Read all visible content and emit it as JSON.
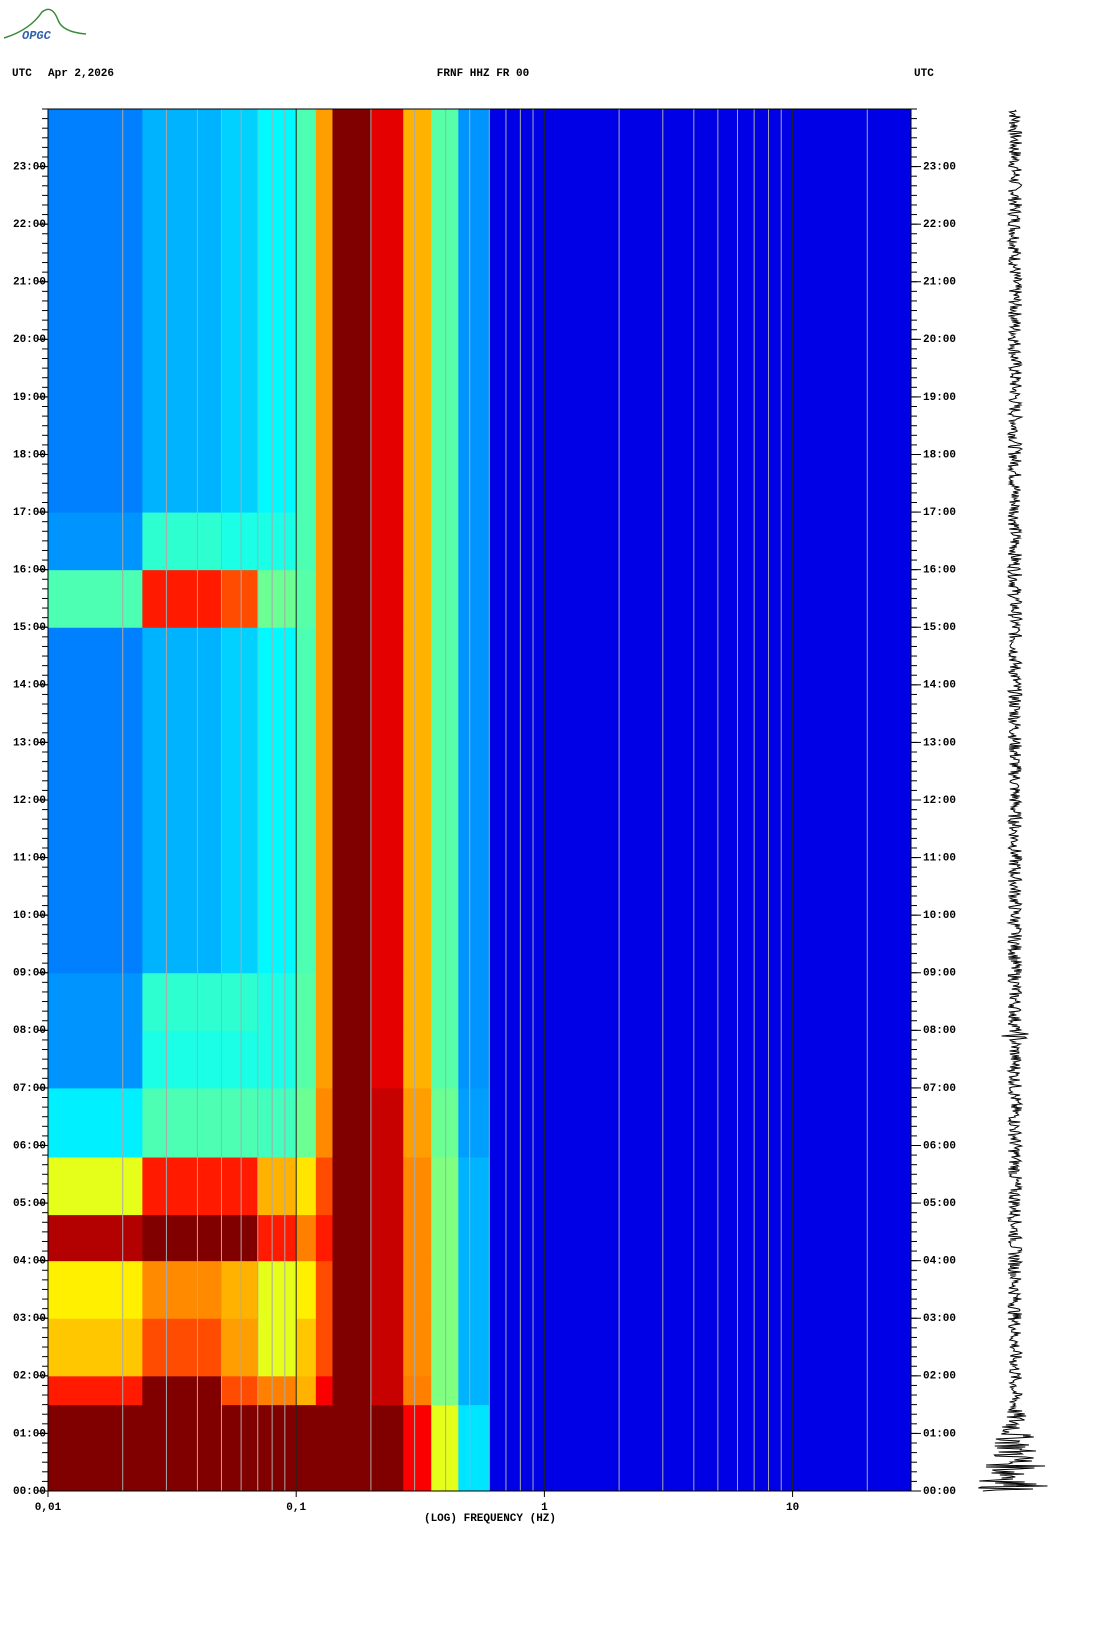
{
  "logo": "OPGC",
  "chart_data": {
    "type": "spectrogram",
    "header_left": "UTC",
    "date": "Apr 2,2026",
    "title": "FRNF HHZ FR 00",
    "header_right": "UTC",
    "xlabel": "(LOG) FREQUENCY (HZ)",
    "xscale": "log",
    "xlim": [
      0.01,
      30
    ],
    "xticks": [
      {
        "value": 0.01,
        "label": "0,01"
      },
      {
        "value": 0.1,
        "label": "0,1"
      },
      1,
      10
    ],
    "ylim": [
      0,
      24
    ],
    "yticks": [
      {
        "value": 0,
        "label": "00:00"
      },
      {
        "value": 1,
        "label": "01:00"
      },
      {
        "value": 2,
        "label": "02:00"
      },
      {
        "value": 3,
        "label": "03:00"
      },
      {
        "value": 4,
        "label": "04:00"
      },
      {
        "value": 5,
        "label": "05:00"
      },
      {
        "value": 6,
        "label": "06:00"
      },
      {
        "value": 7,
        "label": "07:00"
      },
      {
        "value": 8,
        "label": "08:00"
      },
      {
        "value": 9,
        "label": "09:00"
      },
      {
        "value": 10,
        "label": "10:00"
      },
      {
        "value": 11,
        "label": "11:00"
      },
      {
        "value": 12,
        "label": "12:00"
      },
      {
        "value": 13,
        "label": "13:00"
      },
      {
        "value": 14,
        "label": "14:00"
      },
      {
        "value": 15,
        "label": "15:00"
      },
      {
        "value": 16,
        "label": "16:00"
      },
      {
        "value": 17,
        "label": "17:00"
      },
      {
        "value": 18,
        "label": "18:00"
      },
      {
        "value": 19,
        "label": "19:00"
      },
      {
        "value": 20,
        "label": "20:00"
      },
      {
        "value": 21,
        "label": "21:00"
      },
      {
        "value": 22,
        "label": "22:00"
      },
      {
        "value": 23,
        "label": "23:00"
      }
    ],
    "x_bins": [
      0.01,
      0.024,
      0.05,
      0.07,
      0.1,
      0.12,
      0.14,
      0.2,
      0.27,
      0.35,
      0.45,
      0.6,
      30
    ],
    "y_bins": [
      0,
      1.5,
      2,
      3,
      4,
      4.8,
      5.8,
      7,
      8,
      9,
      15,
      16,
      17,
      24
    ],
    "values": [
      [
        1,
        1,
        1,
        1,
        1,
        1,
        1,
        1,
        0.88,
        0.6,
        0.35,
        0.1
      ],
      [
        0.85,
        1,
        0.8,
        0.75,
        0.7,
        0.88,
        1,
        0.93,
        0.75,
        0.5,
        0.3,
        0.1
      ],
      [
        0.68,
        0.8,
        0.72,
        0.6,
        0.68,
        0.8,
        1,
        0.93,
        0.74,
        0.5,
        0.3,
        0.1
      ],
      [
        0.64,
        0.74,
        0.7,
        0.6,
        0.64,
        0.8,
        1,
        0.93,
        0.74,
        0.5,
        0.3,
        0.1
      ],
      [
        0.95,
        1,
        1,
        0.85,
        0.75,
        0.85,
        1,
        0.93,
        0.74,
        0.5,
        0.3,
        0.1
      ],
      [
        0.6,
        0.85,
        0.85,
        0.7,
        0.65,
        0.8,
        1,
        0.93,
        0.74,
        0.5,
        0.3,
        0.1
      ],
      [
        0.36,
        0.45,
        0.45,
        0.44,
        0.48,
        0.74,
        1,
        0.93,
        0.72,
        0.48,
        0.28,
        0.1
      ],
      [
        0.27,
        0.4,
        0.4,
        0.4,
        0.46,
        0.72,
        1,
        0.9,
        0.7,
        0.46,
        0.27,
        0.1
      ],
      [
        0.27,
        0.42,
        0.42,
        0.4,
        0.46,
        0.72,
        1,
        0.9,
        0.7,
        0.46,
        0.27,
        0.1
      ],
      [
        0.25,
        0.3,
        0.33,
        0.37,
        0.45,
        0.72,
        1,
        0.9,
        0.7,
        0.46,
        0.27,
        0.1
      ],
      [
        0.45,
        0.85,
        0.8,
        0.48,
        0.46,
        0.72,
        1,
        0.9,
        0.7,
        0.46,
        0.27,
        0.1
      ],
      [
        0.27,
        0.42,
        0.4,
        0.4,
        0.45,
        0.72,
        1,
        0.9,
        0.7,
        0.46,
        0.27,
        0.1
      ],
      [
        0.25,
        0.3,
        0.33,
        0.37,
        0.45,
        0.72,
        1,
        0.9,
        0.7,
        0.46,
        0.27,
        0.1
      ]
    ],
    "grid": true
  }
}
